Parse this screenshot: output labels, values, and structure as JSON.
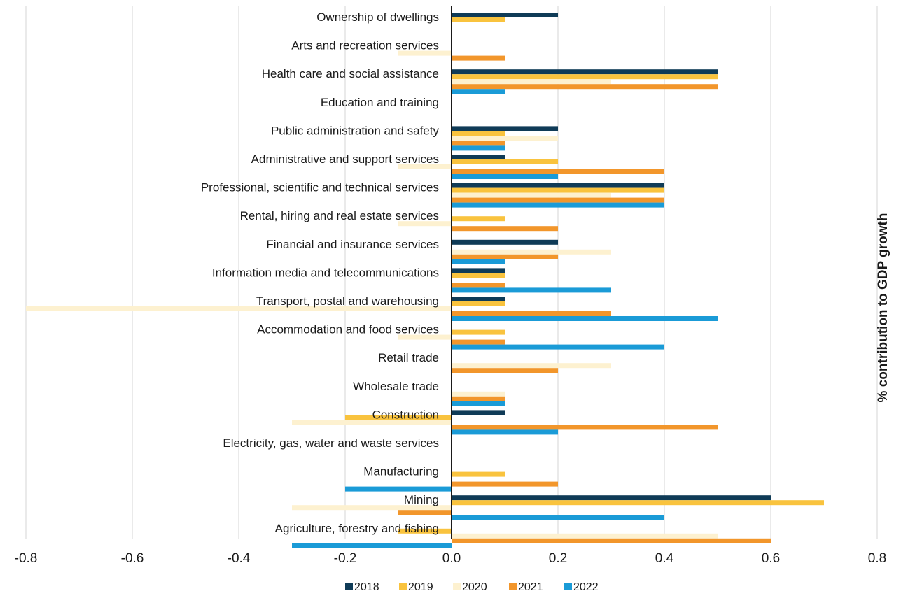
{
  "chart_data": {
    "type": "bar",
    "orientation": "horizontal",
    "title": "",
    "xlabel": "",
    "ylabel": "% contribution to GDP growth",
    "xlim": [
      -0.8,
      0.8
    ],
    "xticks": [
      "-0.8",
      "-0.6",
      "-0.4",
      "-0.2",
      "0.0",
      "0.2",
      "0.4",
      "0.6",
      "0.8"
    ],
    "grid": true,
    "legend_position": "bottom",
    "categories": [
      "Ownership of dwellings",
      "Arts and recreation services",
      "Health care and social assistance",
      "Education and training",
      "Public administration and safety",
      "Administrative and support services",
      "Professional, scientific and technical services",
      "Rental, hiring and real estate services",
      "Financial and insurance services",
      "Information media and telecommunications",
      "Transport, postal and warehousing",
      "Accommodation and food services",
      "Retail trade",
      "Wholesale trade",
      "Construction",
      "Electricity, gas, water and waste services",
      "Manufacturing",
      "Mining",
      "Agriculture, forestry and fishing"
    ],
    "series": [
      {
        "name": "2018",
        "color": "#0f3b57",
        "values": [
          0.2,
          0,
          0.5,
          0,
          0.2,
          0.1,
          0.4,
          0,
          0.2,
          0.1,
          0.1,
          0,
          0,
          0,
          0.1,
          0,
          0,
          0.6,
          0
        ]
      },
      {
        "name": "2019",
        "color": "#f9c33e",
        "values": [
          0.1,
          0,
          0.5,
          0,
          0.1,
          0.2,
          0.4,
          0.1,
          0,
          0.1,
          0.1,
          0.1,
          0,
          0,
          -0.2,
          0,
          0.1,
          0.7,
          -0.1
        ]
      },
      {
        "name": "2020",
        "color": "#fdf1d0",
        "values": [
          0,
          -0.1,
          0.3,
          0,
          0.2,
          -0.1,
          0.3,
          -0.1,
          0.3,
          0,
          -0.8,
          -0.1,
          0.3,
          0.1,
          -0.3,
          0,
          0,
          -0.3,
          0.5
        ]
      },
      {
        "name": "2021",
        "color": "#f2962b",
        "values": [
          0,
          0.1,
          0.5,
          0,
          0.1,
          0.4,
          0.4,
          0.2,
          0.2,
          0.1,
          0.3,
          0.1,
          0.2,
          0.1,
          0.5,
          0,
          0.2,
          -0.1,
          0.6
        ]
      },
      {
        "name": "2022",
        "color": "#1a9bd7",
        "values": [
          0,
          0,
          0.1,
          0,
          0.1,
          0.2,
          0.4,
          0,
          0.1,
          0.3,
          0.5,
          0.4,
          0,
          0.1,
          0.2,
          0,
          -0.2,
          0.4,
          -0.3
        ]
      }
    ]
  }
}
